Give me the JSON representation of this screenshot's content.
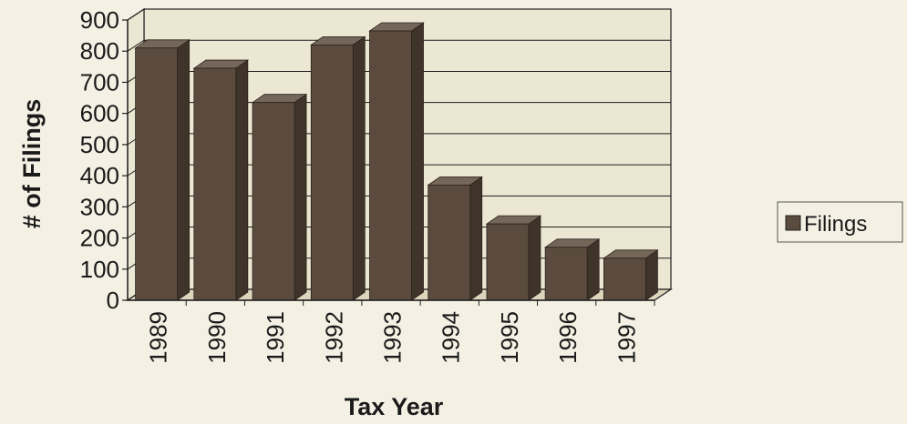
{
  "chart_data": {
    "type": "bar",
    "title": "",
    "xlabel": "Tax Year",
    "ylabel": "# of Filings",
    "categories": [
      "1989",
      "1990",
      "1991",
      "1992",
      "1993",
      "1994",
      "1995",
      "1996",
      "1997"
    ],
    "series": [
      {
        "name": "Filings",
        "values": [
          810,
          745,
          635,
          820,
          865,
          370,
          245,
          170,
          135
        ]
      }
    ],
    "ylim": [
      0,
      900
    ],
    "yticks": [
      0,
      100,
      200,
      300,
      400,
      500,
      600,
      700,
      800,
      900
    ],
    "grid": true,
    "legend_position": "right",
    "colors": {
      "bar_front": "#5a4b3e",
      "bar_side": "#3f342a",
      "bar_top": "#75665a",
      "plot_back": "#ece7d2",
      "plot_floor": "#ddd6bd",
      "grid": "#1e1e1e",
      "text": "#1a1a1a"
    }
  }
}
